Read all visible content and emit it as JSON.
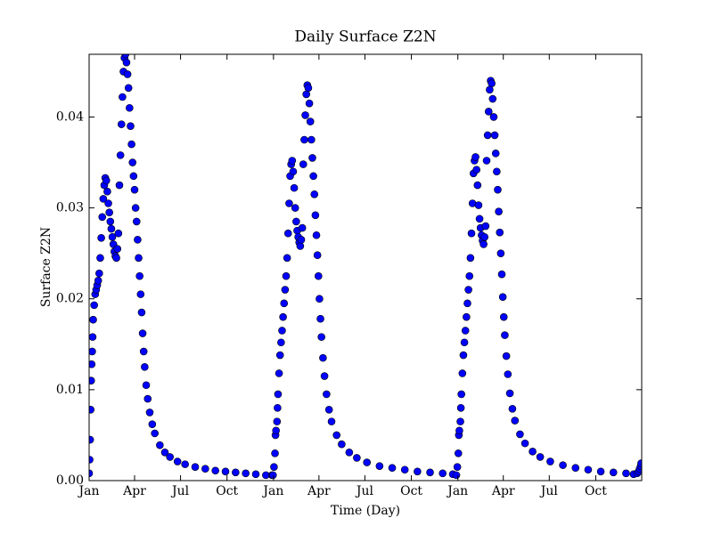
{
  "chart_data": {
    "type": "scatter",
    "title": "Daily Surface Z2N",
    "x_label": "Time (Day)",
    "y_label": "Surface Z2N",
    "color": "#0000ff",
    "xlim": [
      0,
      1094
    ],
    "ylim": [
      0,
      0.0469
    ],
    "xticks": [
      {
        "value": 0,
        "label": "Jan"
      },
      {
        "value": 90,
        "label": "Apr"
      },
      {
        "value": 181,
        "label": "Jul"
      },
      {
        "value": 273,
        "label": "Oct"
      },
      {
        "value": 365,
        "label": "Jan"
      },
      {
        "value": 455,
        "label": "Apr"
      },
      {
        "value": 546,
        "label": "Jul"
      },
      {
        "value": 638,
        "label": "Oct"
      },
      {
        "value": 730,
        "label": "Jan"
      },
      {
        "value": 820,
        "label": "Apr"
      },
      {
        "value": 911,
        "label": "Jul"
      },
      {
        "value": 1003,
        "label": "Oct"
      }
    ],
    "yticks": [
      {
        "value": 0,
        "label": "0.00"
      },
      {
        "value": 0.01,
        "label": "0.01"
      },
      {
        "value": 0.02,
        "label": "0.02"
      },
      {
        "value": 0.03,
        "label": "0.03"
      },
      {
        "value": 0.04,
        "label": "0.04"
      }
    ],
    "x": [
      0,
      1,
      2,
      3,
      4,
      5,
      6,
      7,
      8,
      10,
      12,
      14,
      16,
      18,
      20,
      22,
      24,
      26,
      28,
      30,
      32,
      34,
      36,
      38,
      40,
      42,
      44,
      46,
      48,
      50,
      52,
      54,
      56,
      58,
      60,
      62,
      64,
      66,
      68,
      70,
      72,
      74,
      76,
      78,
      80,
      82,
      84,
      86,
      88,
      90,
      92,
      94,
      96,
      98,
      100,
      102,
      104,
      106,
      108,
      110,
      113,
      116,
      120,
      125,
      130,
      140,
      150,
      160,
      175,
      190,
      210,
      230,
      250,
      270,
      290,
      310,
      330,
      350,
      362,
      364,
      366,
      368,
      369,
      370,
      372,
      373,
      374,
      376,
      378,
      380,
      382,
      384,
      386,
      388,
      390,
      392,
      394,
      396,
      398,
      400,
      402,
      404,
      406,
      408,
      410,
      412,
      414,
      416,
      418,
      420,
      422,
      424,
      426,
      428,
      430,
      432,
      434,
      436,
      438,
      440,
      442,
      444,
      446,
      448,
      450,
      452,
      454,
      456,
      458,
      460,
      463,
      466,
      470,
      475,
      480,
      490,
      500,
      515,
      530,
      550,
      575,
      600,
      625,
      650,
      675,
      700,
      720,
      727,
      729,
      731,
      732,
      733,
      735,
      736,
      737,
      739,
      741,
      743,
      745,
      747,
      749,
      751,
      753,
      755,
      757,
      759,
      761,
      763,
      765,
      767,
      769,
      771,
      773,
      775,
      777,
      779,
      781,
      783,
      785,
      787,
      789,
      791,
      793,
      795,
      797,
      799,
      801,
      803,
      805,
      807,
      809,
      811,
      813,
      815,
      817,
      819,
      821,
      823,
      826,
      829,
      833,
      838,
      843,
      853,
      863,
      878,
      893,
      913,
      938,
      963,
      988,
      1013,
      1038,
      1063,
      1078,
      1085,
      1088,
      1090,
      1092,
      1093
    ],
    "values": [
      0.0008,
      0.0023,
      0.0045,
      0.0078,
      0.011,
      0.0128,
      0.0142,
      0.0158,
      0.0177,
      0.0193,
      0.0205,
      0.021,
      0.0215,
      0.022,
      0.0228,
      0.0245,
      0.0267,
      0.029,
      0.031,
      0.0325,
      0.0333,
      0.033,
      0.0318,
      0.0305,
      0.0295,
      0.0285,
      0.0277,
      0.0268,
      0.026,
      0.0252,
      0.0247,
      0.0245,
      0.0255,
      0.0272,
      0.0325,
      0.0358,
      0.0392,
      0.0422,
      0.045,
      0.0465,
      0.0469,
      0.046,
      0.0447,
      0.0432,
      0.041,
      0.039,
      0.037,
      0.035,
      0.0335,
      0.032,
      0.03,
      0.0285,
      0.0265,
      0.0245,
      0.0225,
      0.0205,
      0.0185,
      0.0162,
      0.0142,
      0.0125,
      0.0105,
      0.009,
      0.0075,
      0.0062,
      0.0052,
      0.0039,
      0.0031,
      0.0026,
      0.0021,
      0.0018,
      0.0015,
      0.0013,
      0.0011,
      0.001,
      0.0009,
      0.0008,
      0.0007,
      0.0006,
      0.0006,
      0.0006,
      0.0015,
      0.003,
      0.005,
      0.0055,
      0.0065,
      0.008,
      0.0095,
      0.0118,
      0.0138,
      0.0152,
      0.0165,
      0.018,
      0.0195,
      0.021,
      0.0225,
      0.0245,
      0.0272,
      0.0305,
      0.0335,
      0.0348,
      0.0352,
      0.034,
      0.0322,
      0.03,
      0.0285,
      0.0275,
      0.0268,
      0.0262,
      0.0258,
      0.0265,
      0.0278,
      0.0348,
      0.0375,
      0.0402,
      0.0425,
      0.0435,
      0.0432,
      0.0415,
      0.0395,
      0.0375,
      0.0355,
      0.0335,
      0.0315,
      0.0292,
      0.027,
      0.0248,
      0.0225,
      0.02,
      0.0178,
      0.0158,
      0.0135,
      0.0115,
      0.0095,
      0.0078,
      0.0065,
      0.005,
      0.004,
      0.0031,
      0.0025,
      0.002,
      0.0016,
      0.0014,
      0.0012,
      0.001,
      0.0009,
      0.0008,
      0.0007,
      0.0006,
      0.0015,
      0.003,
      0.005,
      0.0055,
      0.0065,
      0.008,
      0.0095,
      0.0118,
      0.0138,
      0.0152,
      0.0165,
      0.018,
      0.0195,
      0.021,
      0.0225,
      0.0245,
      0.0272,
      0.0305,
      0.0338,
      0.0352,
      0.0356,
      0.0342,
      0.0325,
      0.0303,
      0.0288,
      0.0278,
      0.027,
      0.0264,
      0.026,
      0.0268,
      0.028,
      0.0352,
      0.038,
      0.0406,
      0.043,
      0.044,
      0.0437,
      0.042,
      0.04,
      0.038,
      0.036,
      0.034,
      0.032,
      0.0296,
      0.0273,
      0.025,
      0.0227,
      0.0202,
      0.018,
      0.016,
      0.0137,
      0.0117,
      0.0096,
      0.0079,
      0.0066,
      0.0051,
      0.0041,
      0.0032,
      0.0026,
      0.0021,
      0.0017,
      0.0014,
      0.0012,
      0.001,
      0.0009,
      0.0008,
      0.0007,
      0.0008,
      0.001,
      0.0013,
      0.0016,
      0.0019
    ]
  }
}
